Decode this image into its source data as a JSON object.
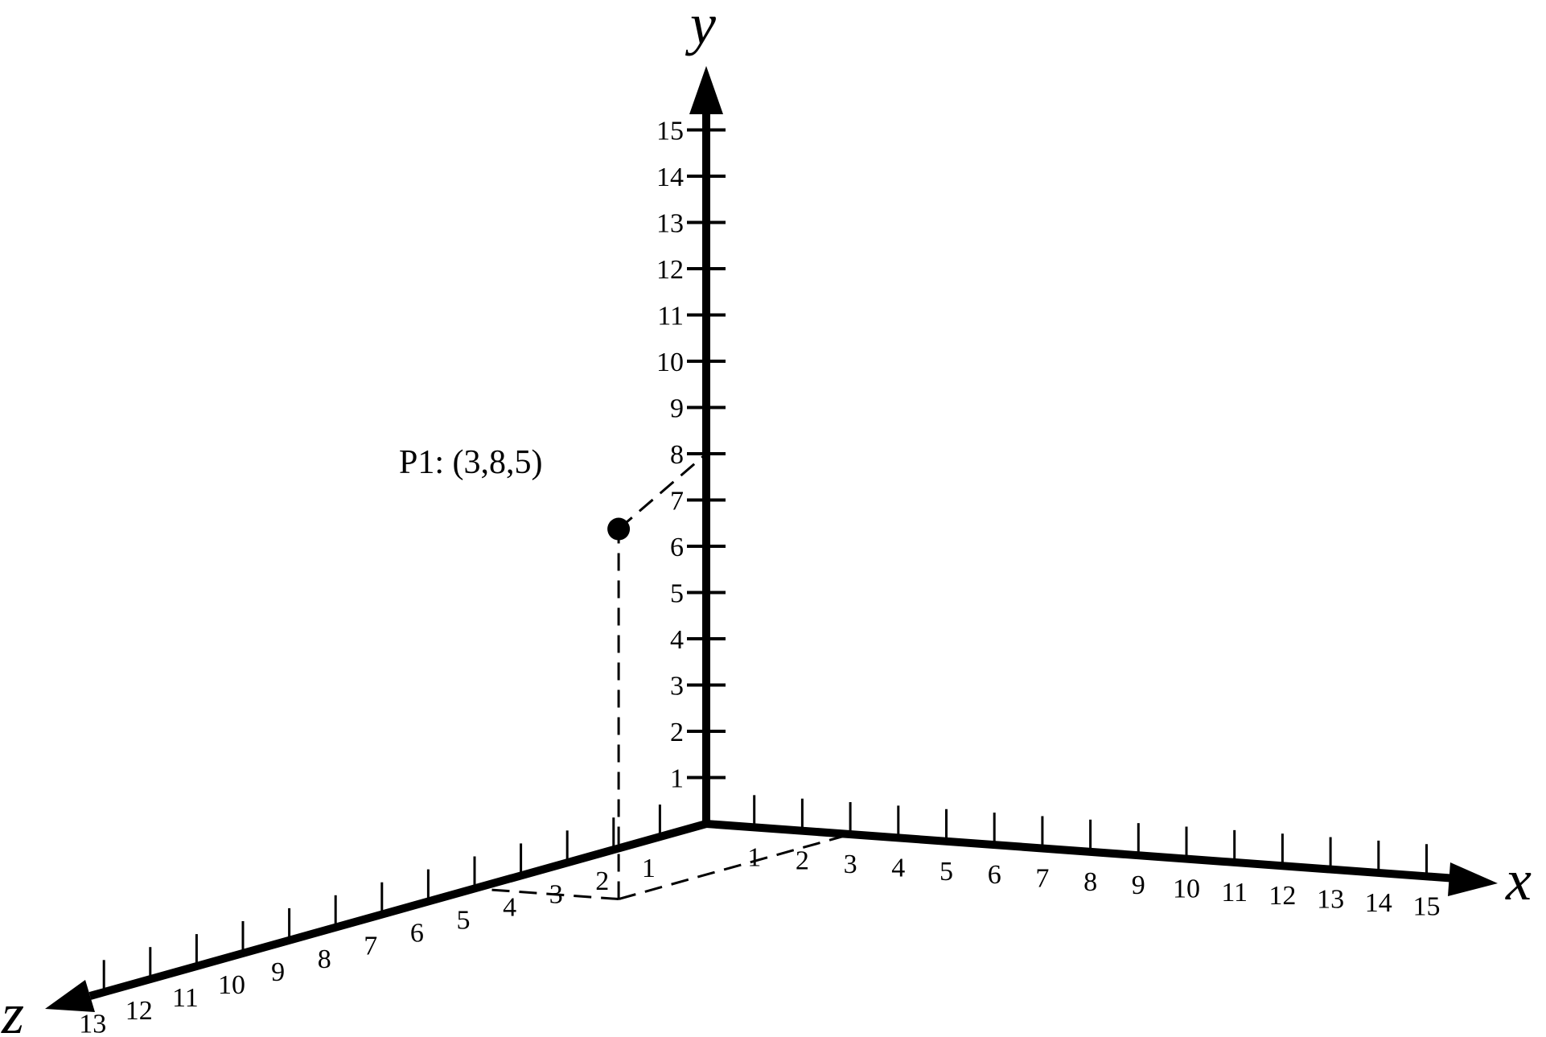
{
  "diagram": {
    "axes": {
      "x": {
        "label": "x",
        "ticks": [
          "1",
          "2",
          "3",
          "4",
          "5",
          "6",
          "7",
          "8",
          "9",
          "10",
          "11",
          "12",
          "13",
          "14",
          "15"
        ]
      },
      "y": {
        "label": "y",
        "ticks": [
          "1",
          "2",
          "3",
          "4",
          "5",
          "6",
          "7",
          "8",
          "9",
          "10",
          "11",
          "12",
          "13",
          "14",
          "15"
        ]
      },
      "z": {
        "label": "z",
        "ticks": [
          "1",
          "2",
          "3",
          "4",
          "5",
          "6",
          "7",
          "8",
          "9",
          "10",
          "11",
          "12",
          "13"
        ]
      }
    },
    "point": {
      "label": "P1: (3,8,5)",
      "x": 3,
      "y": 8,
      "z": 5
    },
    "colors": {
      "stroke": "#000000",
      "background": "#ffffff"
    }
  }
}
